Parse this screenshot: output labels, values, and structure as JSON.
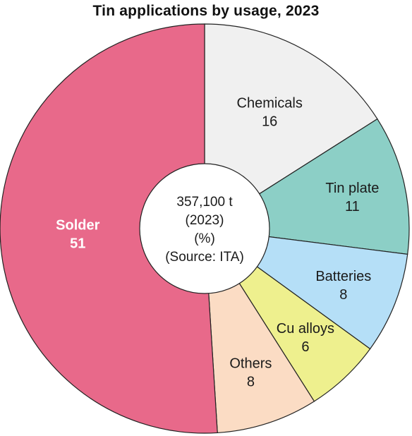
{
  "chart_data": {
    "type": "pie",
    "title": "Tin applications by usage, 2023",
    "center_text": [
      "357,100 t",
      "(2023)",
      "(%)",
      "(Source: ITA)"
    ],
    "slices": [
      {
        "label": "Chemicals",
        "value": 16,
        "color": "#f0f0f0",
        "text_color": "#1a1a1a",
        "bold": false
      },
      {
        "label": "Tin plate",
        "value": 11,
        "color": "#8ccfc6",
        "text_color": "#1a1a1a",
        "bold": false
      },
      {
        "label": "Batteries",
        "value": 8,
        "color": "#b5dff7",
        "text_color": "#1a1a1a",
        "bold": false
      },
      {
        "label": "Cu alloys",
        "value": 6,
        "color": "#eef08e",
        "text_color": "#1a1a1a",
        "bold": false
      },
      {
        "label": "Others",
        "value": 8,
        "color": "#fbdcc4",
        "text_color": "#1a1a1a",
        "bold": false
      },
      {
        "label": "Solder",
        "value": 51,
        "color": "#e8698a",
        "text_color": "#ffffff",
        "bold": true
      }
    ]
  }
}
